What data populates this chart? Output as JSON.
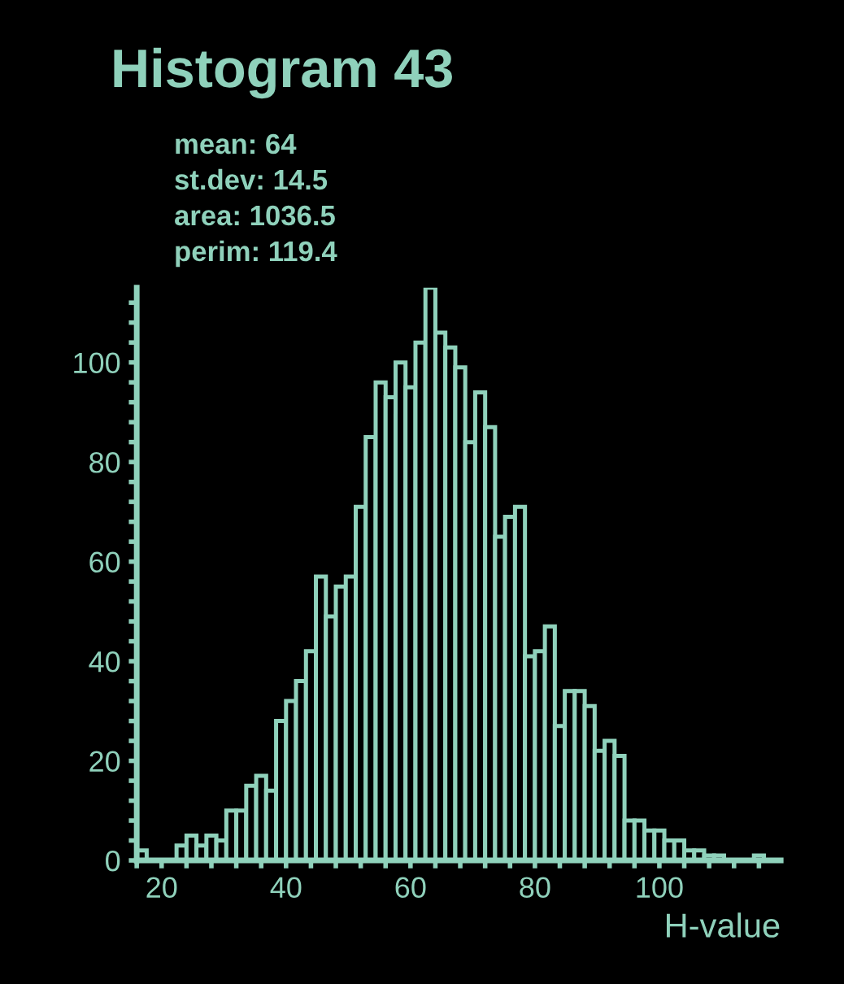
{
  "chart_data": {
    "type": "histogram",
    "title": "Histogram 43",
    "xlabel": "H-value",
    "annotations": [
      "mean: 64",
      "st.dev: 14.5",
      "area: 1036.5",
      "perim: 119.4"
    ],
    "bins": [
      16,
      17.6,
      19.2,
      20.8,
      22.4,
      24,
      25.6,
      27.2,
      28.8,
      30.4,
      32,
      33.6,
      35.2,
      36.8,
      38.4,
      40,
      41.6,
      43.2,
      44.8,
      46.4,
      48,
      49.6,
      51.2,
      52.8,
      54.4,
      56,
      57.6,
      59.2,
      60.8,
      62.4,
      64,
      65.6,
      67.2,
      68.8,
      70.4,
      72,
      73.6,
      75.2,
      76.8,
      78.4,
      80,
      81.6,
      83.2,
      84.8,
      86.4,
      88,
      89.6,
      91.2,
      92.8,
      94.4,
      96,
      97.6,
      99.2,
      100.8,
      102.4,
      104,
      105.6,
      107.2,
      108.8,
      110.4,
      112,
      113.6,
      115.2,
      116.8,
      118.4
    ],
    "values": [
      2,
      0,
      0,
      0,
      3,
      5,
      3,
      5,
      4,
      10,
      10,
      15,
      17,
      14,
      28,
      32,
      36,
      42,
      57,
      49,
      55,
      57,
      71,
      85,
      96,
      93,
      100,
      95,
      104,
      115,
      106,
      103,
      99,
      84,
      94,
      87,
      65,
      69,
      71,
      41,
      42,
      47,
      27,
      34,
      34,
      31,
      22,
      24,
      21,
      8,
      8,
      6,
      6,
      4,
      4,
      2,
      2,
      1,
      1,
      0,
      0,
      0,
      1,
      0
    ],
    "color": "#8fd1bb",
    "xlim": [
      16,
      119.5
    ],
    "ylim": [
      0,
      115
    ],
    "xticks": [
      {
        "value": 16,
        "label": null
      },
      20,
      {
        "value": 24,
        "label": null
      },
      {
        "value": 28,
        "label": null
      },
      {
        "value": 32,
        "label": null
      },
      {
        "value": 36,
        "label": null
      },
      40,
      {
        "value": 44,
        "label": null
      },
      {
        "value": 48,
        "label": null
      },
      {
        "value": 52,
        "label": null
      },
      {
        "value": 56,
        "label": null
      },
      60,
      {
        "value": 64,
        "label": null
      },
      {
        "value": 68,
        "label": null
      },
      {
        "value": 72,
        "label": null
      },
      {
        "value": 76,
        "label": null
      },
      80,
      {
        "value": 84,
        "label": null
      },
      {
        "value": 88,
        "label": null
      },
      {
        "value": 92,
        "label": null
      },
      {
        "value": 96,
        "label": null
      },
      100,
      {
        "value": 104,
        "label": null
      },
      {
        "value": 108,
        "label": null
      },
      {
        "value": 112,
        "label": null
      },
      {
        "value": 116,
        "label": null
      }
    ],
    "yticks": [
      0,
      {
        "value": 4,
        "label": null
      },
      {
        "value": 8,
        "label": null
      },
      {
        "value": 12,
        "label": null
      },
      {
        "value": 16,
        "label": null
      },
      20,
      {
        "value": 24,
        "label": null
      },
      {
        "value": 28,
        "label": null
      },
      {
        "value": 32,
        "label": null
      },
      {
        "value": 36,
        "label": null
      },
      40,
      {
        "value": 44,
        "label": null
      },
      {
        "value": 48,
        "label": null
      },
      {
        "value": 52,
        "label": null
      },
      {
        "value": 56,
        "label": null
      },
      60,
      {
        "value": 64,
        "label": null
      },
      {
        "value": 68,
        "label": null
      },
      {
        "value": 72,
        "label": null
      },
      {
        "value": 76,
        "label": null
      },
      80,
      {
        "value": 84,
        "label": null
      },
      {
        "value": 88,
        "label": null
      },
      {
        "value": 92,
        "label": null
      },
      {
        "value": 96,
        "label": null
      },
      100,
      {
        "value": 104,
        "label": null
      },
      {
        "value": 108,
        "label": null
      },
      {
        "value": 112,
        "label": null
      }
    ],
    "grid": false
  }
}
